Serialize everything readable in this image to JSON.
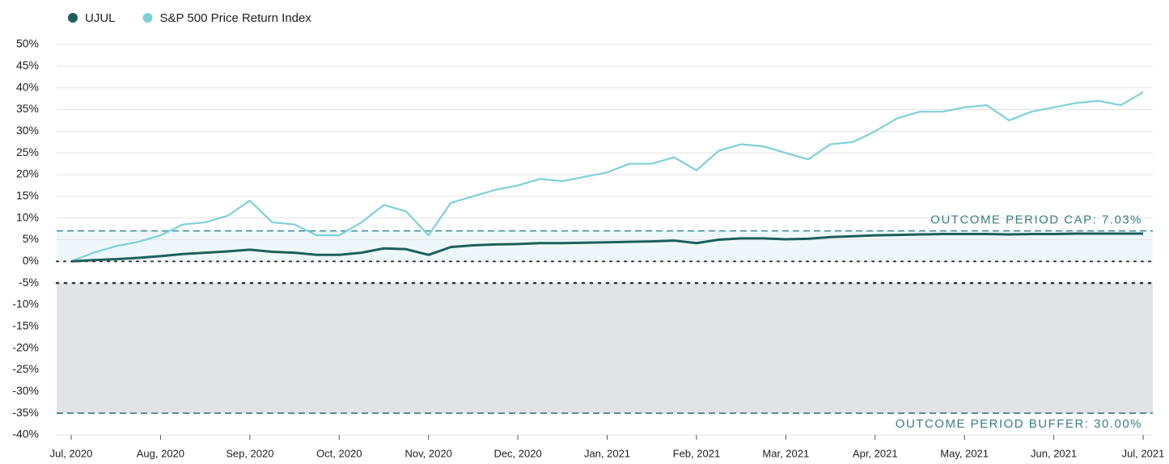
{
  "chart_data": {
    "type": "line",
    "categories": [
      "Jul, 2020",
      null,
      null,
      null,
      "Aug, 2020",
      null,
      null,
      null,
      "Sep, 2020",
      null,
      null,
      null,
      "Oct, 2020",
      null,
      null,
      null,
      "Nov, 2020",
      null,
      null,
      null,
      "Dec, 2020",
      null,
      null,
      null,
      "Jan, 2021",
      null,
      null,
      null,
      "Feb, 2021",
      null,
      null,
      null,
      "Mar, 2021",
      null,
      null,
      null,
      "Apr, 2021",
      null,
      null,
      null,
      "May, 2021",
      null,
      null,
      null,
      "Jun, 2021",
      null,
      null,
      null,
      "Jul, 2021"
    ],
    "series": [
      {
        "name": "UJUL",
        "color": "#1f5f5b",
        "values": [
          0,
          0.3,
          0.5,
          0.8,
          1.2,
          1.7,
          2,
          2.3,
          2.7,
          2.2,
          2,
          1.5,
          1.5,
          2,
          3,
          2.8,
          1.5,
          3.3,
          3.7,
          3.9,
          4,
          4.2,
          4.2,
          4.3,
          4.4,
          4.5,
          4.6,
          4.8,
          4.2,
          5,
          5.3,
          5.3,
          5.1,
          5.2,
          5.6,
          5.8,
          6,
          6.1,
          6.2,
          6.3,
          6.3,
          6.3,
          6.2,
          6.3,
          6.3,
          6.4,
          6.4,
          6.4,
          6.4
        ]
      },
      {
        "name": "S&P 500 Price Return Index",
        "color": "#7fd0d8",
        "values": [
          0,
          2,
          3.5,
          4.5,
          6,
          8.5,
          9,
          10.5,
          14,
          9,
          8.5,
          6,
          6,
          9,
          13,
          11.5,
          6,
          13.5,
          15,
          16.5,
          17.5,
          19,
          18.5,
          19.5,
          20.5,
          22.5,
          22.5,
          24,
          21,
          25.5,
          27,
          26.5,
          25,
          23.5,
          27,
          27.5,
          30,
          33,
          34.5,
          34.5,
          35.5,
          36,
          32.5,
          34.5,
          35.5,
          36.5,
          37,
          36,
          39
        ]
      }
    ],
    "ylim": [
      -40,
      50
    ],
    "yticks": [
      {
        "value": 50,
        "label": "50%"
      },
      {
        "value": 45,
        "label": "45%"
      },
      {
        "value": 40,
        "label": "40%"
      },
      {
        "value": 35,
        "label": "35%"
      },
      {
        "value": 30,
        "label": "30%"
      },
      {
        "value": 25,
        "label": "25%"
      },
      {
        "value": 20,
        "label": "20%"
      },
      {
        "value": 15,
        "label": "15%"
      },
      {
        "value": 10,
        "label": "10%"
      },
      {
        "value": 5,
        "label": "5%"
      },
      {
        "value": 0,
        "label": "0%"
      },
      {
        "value": -5,
        "label": "-5%"
      },
      {
        "value": -10,
        "label": "-10%"
      },
      {
        "value": -15,
        "label": "-15%"
      },
      {
        "value": -20,
        "label": "-20%"
      },
      {
        "value": -25,
        "label": "-25%"
      },
      {
        "value": -30,
        "label": "-30%"
      },
      {
        "value": -35,
        "label": "-35%"
      },
      {
        "value": -40,
        "label": "-40%"
      }
    ],
    "grid": true,
    "cap": {
      "value": 7.03,
      "label": "OUTCOME PERIOD CAP: 7.03%",
      "color": "#3a8a90",
      "fill": "#eef8fa"
    },
    "buffer": {
      "start": -5,
      "value": 30,
      "label": "OUTCOME PERIOD BUFFER: 30.00%",
      "color": "#2f6f70",
      "fill": "#e1e3e6"
    }
  }
}
